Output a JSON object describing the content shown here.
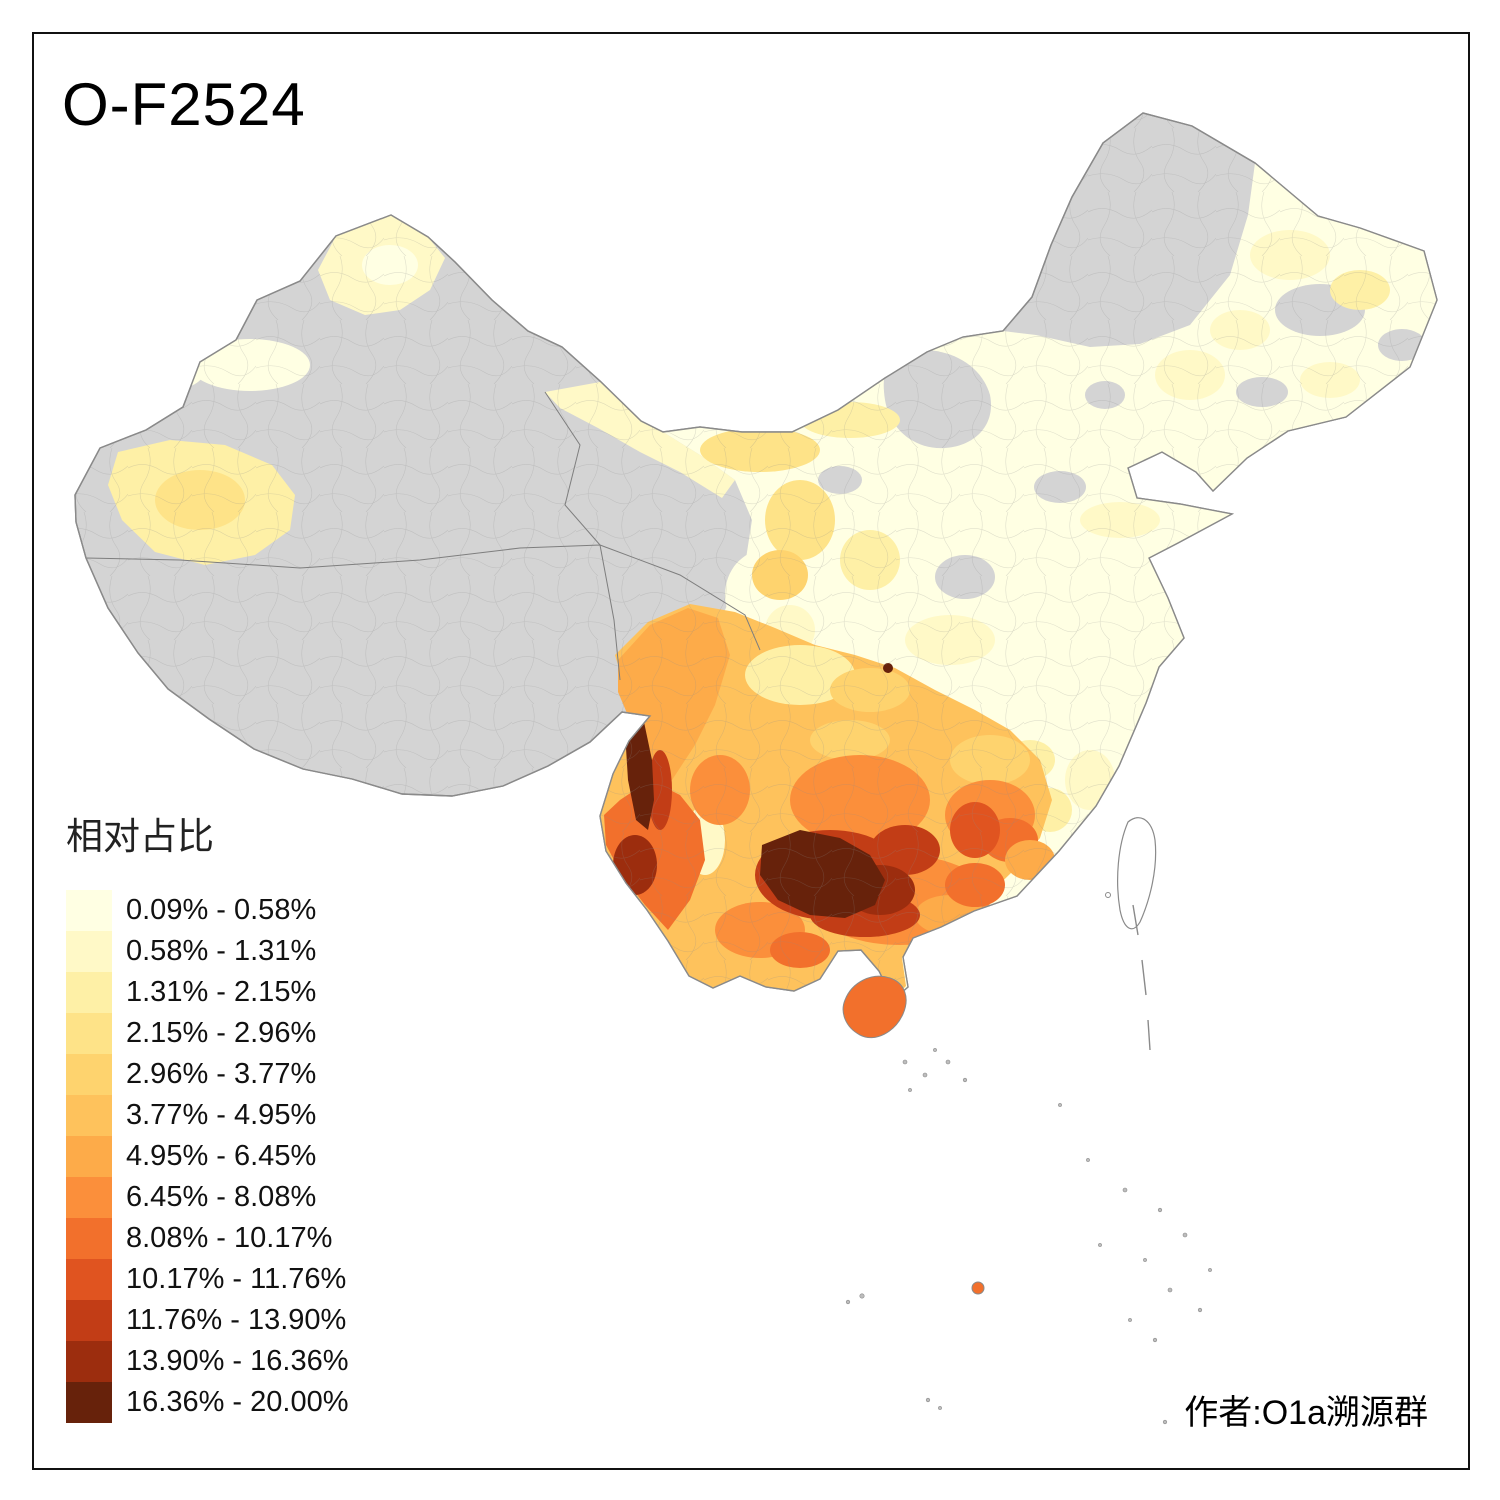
{
  "title": "O-F2524",
  "author": "作者:O1a溯源群",
  "legend": {
    "title": "相对占比",
    "items": [
      {
        "label": "0.09% - 0.58%",
        "color": "#FFFFE3"
      },
      {
        "label": "0.58% - 1.31%",
        "color": "#FFF9C7"
      },
      {
        "label": "1.31% - 2.15%",
        "color": "#FEF0A6"
      },
      {
        "label": "2.15% - 2.96%",
        "color": "#FEE388"
      },
      {
        "label": "2.96% - 3.77%",
        "color": "#FED36E"
      },
      {
        "label": "3.77% - 4.95%",
        "color": "#FEC25C"
      },
      {
        "label": "4.95% - 6.45%",
        "color": "#FDAB49"
      },
      {
        "label": "6.45% - 8.08%",
        "color": "#FB8F3B"
      },
      {
        "label": "8.08% - 10.17%",
        "color": "#F2702C"
      },
      {
        "label": "10.17% - 11.76%",
        "color": "#E05420"
      },
      {
        "label": "11.76% - 13.90%",
        "color": "#C23D16"
      },
      {
        "label": "13.90% - 16.36%",
        "color": "#9C2D0E"
      },
      {
        "label": "16.36% - 20.00%",
        "color": "#67220B"
      }
    ]
  },
  "map": {
    "name": "china-prefecture-choropleth",
    "metric": "相对占比",
    "no_data_color": "#D4D4D4",
    "border_color": "#8A8A8A",
    "high_value_regions": [
      "西南云南西部",
      "贵州南部",
      "广西西北部",
      "海南"
    ],
    "low_value_regions": [
      "华北",
      "东北",
      "华东沿海"
    ],
    "no_data_regions": [
      "西藏",
      "新疆大部",
      "青海大部",
      "呼伦贝尔"
    ]
  }
}
